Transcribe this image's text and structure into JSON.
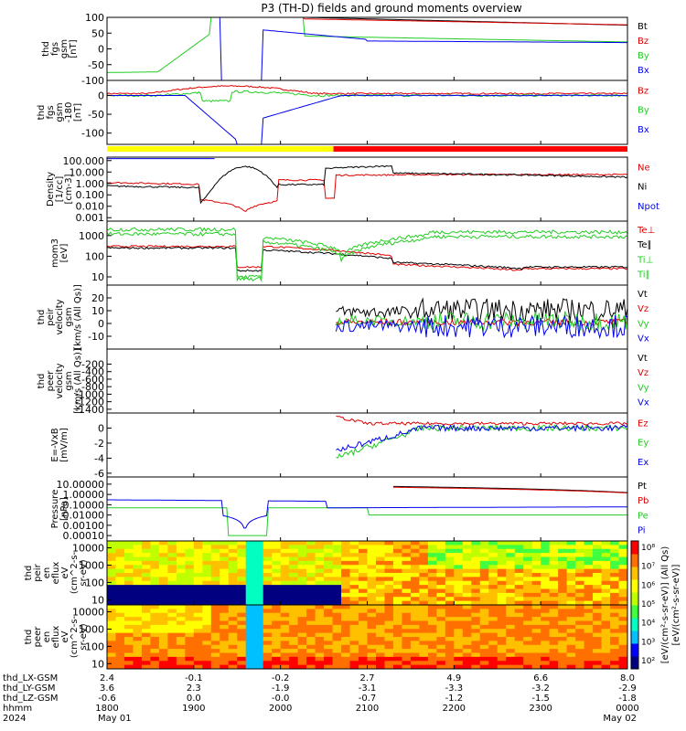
{
  "title": "P3 (TH-D) fields and ground moments overview",
  "colors": {
    "black": "#000000",
    "red": "#e00000",
    "green": "#22cc22",
    "blue": "#0000ee"
  },
  "chart_data": [
    {
      "type": "line",
      "id": "p1",
      "ylabel": [
        "thd",
        "fgs",
        "gsm",
        "[nT]"
      ],
      "ylim": [
        -100,
        100
      ],
      "yticks": [
        "100",
        "50",
        "0",
        "-50",
        "-100"
      ],
      "yticks_v": [
        100,
        50,
        0,
        -50,
        -100
      ],
      "legend": [
        {
          "label": "Bt",
          "color": "black"
        },
        {
          "label": "Bz",
          "color": "red"
        },
        {
          "label": "By",
          "color": "green"
        },
        {
          "label": "Bx",
          "color": "blue"
        }
      ]
    },
    {
      "type": "line",
      "id": "p2",
      "ylabel": [
        "thd",
        "fgs",
        "gsm",
        "-180",
        "[nT]"
      ],
      "ylim": [
        -130,
        40
      ],
      "yticks": [
        "0",
        "-50",
        "-100"
      ],
      "yticks_v": [
        0,
        -50,
        -100
      ],
      "legend": [
        {
          "label": "Bz",
          "color": "red"
        },
        {
          "label": "By",
          "color": "green"
        },
        {
          "label": "Bx",
          "color": "blue"
        }
      ]
    },
    {
      "type": "line",
      "id": "p3",
      "ylabel": [
        "Density",
        "[1/cc]",
        "[cm-3]"
      ],
      "ylim": [
        0.0005,
        200
      ],
      "log": true,
      "yticks": [
        "100.000",
        "10.000",
        "1.000",
        "0.100",
        "0.010",
        "0.001"
      ],
      "yticks_v": [
        100,
        10,
        1,
        0.1,
        0.01,
        0.001
      ],
      "legend": [
        {
          "label": "Ne",
          "color": "red"
        },
        {
          "label": "Ni",
          "color": "black"
        },
        {
          "label": "Npot",
          "color": "blue"
        }
      ]
    },
    {
      "type": "line",
      "id": "p4",
      "ylabel": [
        "mom3",
        "[eV]"
      ],
      "ylim": [
        4,
        5000
      ],
      "log": true,
      "yticks": [
        "1000",
        "100",
        "10"
      ],
      "yticks_v": [
        1000,
        100,
        10
      ],
      "legend": [
        {
          "label": "Te⊥",
          "color": "red"
        },
        {
          "label": "Te∥",
          "color": "black"
        },
        {
          "label": "Ti⊥",
          "color": "green"
        },
        {
          "label": "Ti∥",
          "color": "green"
        }
      ]
    },
    {
      "type": "line",
      "id": "p5",
      "ylabel": [
        "thd",
        "peir",
        "velocity",
        "gsm",
        "[km/s (All Qs)]"
      ],
      "ylim": [
        -20,
        30
      ],
      "yticks": [
        "20",
        "10",
        "0",
        "-10"
      ],
      "yticks_v": [
        20,
        10,
        0,
        -10
      ],
      "legend": [
        {
          "label": "Vt",
          "color": "black"
        },
        {
          "label": "Vz",
          "color": "red"
        },
        {
          "label": "Vy",
          "color": "green"
        },
        {
          "label": "Vx",
          "color": "blue"
        }
      ]
    },
    {
      "type": "line",
      "id": "p6",
      "ylabel": [
        "thd",
        "peer",
        "velocity",
        "gsm",
        "[km/s (All Qs)]"
      ],
      "ylim": [
        -1500,
        200
      ],
      "yticks": [
        "-200",
        "-400",
        "-600",
        "-800",
        "-1000",
        "-1200",
        "-1400"
      ],
      "yticks_v": [
        -200,
        -400,
        -600,
        -800,
        -1000,
        -1200,
        -1400
      ],
      "legend": [
        {
          "label": "Vt",
          "color": "black"
        },
        {
          "label": "Vz",
          "color": "red"
        },
        {
          "label": "Vy",
          "color": "green"
        },
        {
          "label": "Vx",
          "color": "blue"
        }
      ]
    },
    {
      "type": "line",
      "id": "p7",
      "ylabel": [
        "E=-VxB",
        "[mV/m]"
      ],
      "ylim": [
        -6.5,
        2
      ],
      "yticks": [
        "0",
        "-2",
        "-4",
        "-6"
      ],
      "yticks_v": [
        0,
        -2,
        -4,
        -6
      ],
      "legend": [
        {
          "label": "Ez",
          "color": "red"
        },
        {
          "label": "Ey",
          "color": "green"
        },
        {
          "label": "Ex",
          "color": "blue"
        }
      ]
    },
    {
      "type": "line",
      "id": "p8",
      "ylabel": [
        "Pressure",
        "[nPa]"
      ],
      "ylim": [
        3e-05,
        50
      ],
      "log": true,
      "yticks": [
        "10.00000",
        "1.00000",
        "0.10000",
        "0.01000",
        "0.00100",
        "0.00010"
      ],
      "yticks_v": [
        10,
        1,
        0.1,
        0.01,
        0.001,
        0.0001
      ],
      "legend": [
        {
          "label": "Pt",
          "color": "black"
        },
        {
          "label": "Pb",
          "color": "red"
        },
        {
          "label": "Pe",
          "color": "green"
        },
        {
          "label": "Pi",
          "color": "blue"
        }
      ]
    },
    {
      "type": "heatmap",
      "id": "p9",
      "ylabel": [
        "thd",
        "peir",
        "en",
        "eflux",
        "eV",
        "(cm^2-s-",
        "sr-eV)"
      ],
      "ylim": [
        5,
        25000
      ],
      "log": true,
      "yticks": [
        "10000",
        "1000",
        "100",
        "10"
      ],
      "yticks_v": [
        10000,
        1000,
        100,
        10
      ]
    },
    {
      "type": "heatmap",
      "id": "p10",
      "ylabel": [
        "thd",
        "peer",
        "en",
        "eflux",
        "eV",
        "(cm^2-s-",
        "sr-eV)"
      ],
      "ylim": [
        5,
        25000
      ],
      "log": true,
      "yticks": [
        "10000",
        "1000",
        "100",
        "10"
      ],
      "yticks_v": [
        10000,
        1000,
        100,
        10
      ]
    }
  ],
  "colorbar": {
    "labels": [
      "10⁸",
      "10⁷",
      "10⁶",
      "10⁵",
      "10⁴",
      "10³",
      "10²"
    ],
    "title": "[eV/(cm²-s-sr-eV)] (All Qs)",
    "title2": "[eV/(cm²-s-sr-eV)]"
  },
  "xaxis": {
    "rows": [
      {
        "label": "thd_LX-GSM",
        "values": [
          "2.4",
          "-0.1",
          "-0.2",
          "2.7",
          "4.9",
          "6.6",
          "8.0"
        ]
      },
      {
        "label": "thd_LY-GSM",
        "values": [
          "3.6",
          "2.3",
          "-1.9",
          "-3.1",
          "-3.3",
          "-3.2",
          "-2.9"
        ]
      },
      {
        "label": "thd_LZ-GSM",
        "values": [
          "-0.6",
          "0.0",
          "-0.0",
          "-0.7",
          "-1.2",
          "-1.5",
          "-1.8"
        ]
      },
      {
        "label": "hhmm",
        "values": [
          "1800",
          "1900",
          "2000",
          "2100",
          "2200",
          "2300",
          "0000"
        ]
      },
      {
        "label": "2024",
        "values": [
          "May 01",
          "",
          "",
          "",
          "",
          "",
          "May 02"
        ]
      }
    ]
  }
}
